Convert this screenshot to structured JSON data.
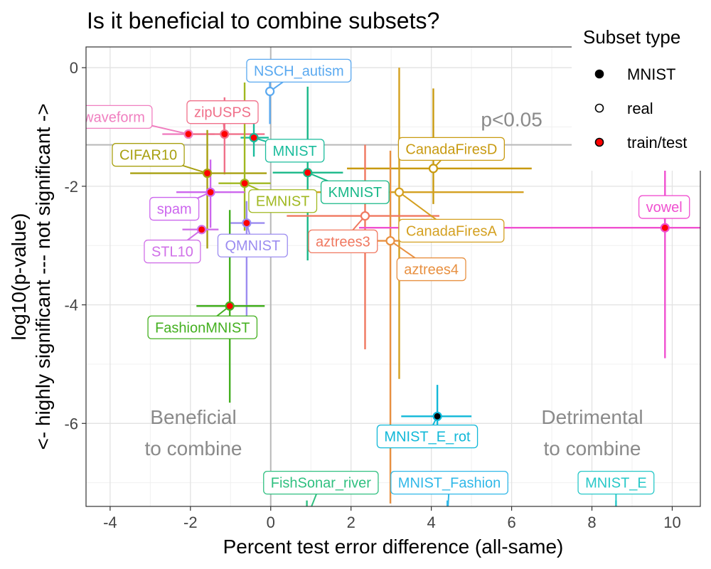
{
  "chart_data": {
    "type": "scatter",
    "title": "Is it beneficial to combine subsets?",
    "xlabel": "Percent test error difference (all-same)",
    "ylabel_line1": "log10(p-value)",
    "ylabel_line2": "<- highly significant --- not significant ->",
    "xlim": [
      -4.6,
      10.7
    ],
    "ylim": [
      -7.4,
      0.35
    ],
    "x_ticks": [
      -4,
      -2,
      0,
      2,
      4,
      6,
      8,
      10
    ],
    "y_ticks": [
      0,
      -2,
      -4,
      -6
    ],
    "x_tick_labels": [
      "-4",
      "-2",
      "0",
      "2",
      "4",
      "6",
      "8",
      "10"
    ],
    "y_tick_labels": [
      "0",
      "-2",
      "-4",
      "-6"
    ],
    "grid": true,
    "threshold": {
      "y": -1.30103,
      "label": "p<0.05"
    },
    "region_labels": {
      "left_line1": "Beneficial",
      "left_line2": "to combine",
      "right_line1": "Detrimental",
      "right_line2": "to combine"
    },
    "legend": {
      "title": "Subset type",
      "placement": "top-right",
      "entries": [
        {
          "label": "MNIST",
          "fill": "#000000"
        },
        {
          "label": "real",
          "fill": "#ffffff"
        },
        {
          "label": "train/test",
          "fill": "#ff0000"
        }
      ]
    },
    "points": [
      {
        "name": "NSCH_autism",
        "color": "#5aa9f0",
        "type": "real",
        "x": -0.02,
        "y": -0.4,
        "x_lo": -0.02,
        "x_hi": -0.02,
        "y_lo": -0.95,
        "y_hi": 0.0,
        "label_x": 0.7,
        "label_y": -0.05
      },
      {
        "name": "waveform",
        "color": "#f07fc0",
        "type": "train/test",
        "x": -2.05,
        "y": -1.12,
        "x_lo": -2.7,
        "x_hi": -1.4,
        "y_lo": -1.12,
        "y_hi": -1.12,
        "label_x": -3.9,
        "label_y": -0.83
      },
      {
        "name": "zipUSPS",
        "color": "#f0708a",
        "type": "train/test",
        "x": -1.15,
        "y": -1.12,
        "x_lo": -1.95,
        "x_hi": -0.15,
        "y_lo": -1.8,
        "y_hi": -0.5,
        "label_x": -1.2,
        "label_y": -0.75
      },
      {
        "name": "MNIST",
        "color": "#1abc9c",
        "type": "train/test",
        "x": -0.42,
        "y": -1.18,
        "x_lo": -0.75,
        "x_hi": -0.05,
        "y_lo": -1.5,
        "y_hi": -0.85,
        "label_x": 0.6,
        "label_y": -1.4
      },
      {
        "name": "CIFAR10",
        "color": "#a8a010",
        "type": "train/test",
        "x": -1.58,
        "y": -1.78,
        "x_lo": -3.5,
        "x_hi": -0.1,
        "y_lo": -3.05,
        "y_hi": -1.05,
        "label_x": -3.05,
        "label_y": -1.47
      },
      {
        "name": "EMNIST",
        "color": "#a0b820",
        "type": "train/test",
        "x": -0.65,
        "y": -1.95,
        "x_lo": -1.3,
        "x_hi": 0.0,
        "y_lo": -2.75,
        "y_hi": -0.25,
        "label_x": 0.3,
        "label_y": -2.25
      },
      {
        "name": "spam",
        "color": "#cc66ee",
        "type": "train/test",
        "x": -1.5,
        "y": -2.1,
        "x_lo": -2.35,
        "x_hi": -0.65,
        "y_lo": -2.7,
        "y_hi": -1.55,
        "label_x": -2.4,
        "label_y": -2.38
      },
      {
        "name": "STL10",
        "color": "#d070e8",
        "type": "train/test",
        "x": -1.72,
        "y": -2.73,
        "x_lo": -2.2,
        "x_hi": -1.3,
        "y_lo": -2.73,
        "y_hi": -2.73,
        "label_x": -2.45,
        "label_y": -3.1
      },
      {
        "name": "QMNIST",
        "color": "#9c8cf0",
        "type": "train/test",
        "x": -0.6,
        "y": -2.62,
        "x_lo": -1.0,
        "x_hi": -0.15,
        "y_lo": -4.2,
        "y_hi": -2.25,
        "label_x": -0.45,
        "label_y": -3.0
      },
      {
        "name": "FashionMNIST",
        "color": "#44b020",
        "type": "train/test",
        "x": -1.02,
        "y": -4.02,
        "x_lo": -1.85,
        "x_hi": -0.15,
        "y_lo": -5.65,
        "y_hi": -2.4,
        "label_x": -1.7,
        "label_y": -4.38
      },
      {
        "name": "KMNIST",
        "color": "#18b888",
        "type": "train/test",
        "x": 0.92,
        "y": -1.77,
        "x_lo": 0.05,
        "x_hi": 1.8,
        "y_lo": -3.25,
        "y_hi": -0.32,
        "label_x": 2.1,
        "label_y": -2.1
      },
      {
        "name": "CanadaFiresD",
        "color": "#c89a10",
        "type": "real",
        "x": 4.05,
        "y": -1.7,
        "x_lo": 1.9,
        "x_hi": 6.5,
        "y_lo": -2.3,
        "y_hi": -0.35,
        "label_x": 4.5,
        "label_y": -1.37
      },
      {
        "name": "CanadaFiresA",
        "color": "#d4a020",
        "type": "real",
        "x": 3.2,
        "y": -2.1,
        "x_lo": 0.5,
        "x_hi": 6.3,
        "y_lo": -5.25,
        "y_hi": 0.0,
        "label_x": 4.5,
        "label_y": -2.75
      },
      {
        "name": "aztrees3",
        "color": "#f07860",
        "type": "real",
        "x": 2.35,
        "y": -2.5,
        "x_lo": 0.4,
        "x_hi": 4.2,
        "y_lo": -4.75,
        "y_hi": -1.3,
        "label_x": 1.8,
        "label_y": -2.93
      },
      {
        "name": "aztrees4",
        "color": "#e89040",
        "type": "real",
        "x": 2.98,
        "y": -2.92,
        "x_lo": 1.5,
        "x_hi": 4.4,
        "y_lo": -7.35,
        "y_hi": -1.4,
        "label_x": 4.0,
        "label_y": -3.4
      },
      {
        "name": "vowel",
        "color": "#f050d0",
        "type": "train/test",
        "x": 9.82,
        "y": -2.7,
        "x_lo": 2.2,
        "x_hi": 10.7,
        "y_lo": -4.9,
        "y_hi": -1.7,
        "label_x": 9.8,
        "label_y": -2.35
      },
      {
        "name": "MNIST_E_rot",
        "color": "#10b8d8",
        "type": "MNIST",
        "x": 4.15,
        "y": -5.88,
        "x_lo": 3.25,
        "x_hi": 5.0,
        "y_lo": -6.3,
        "y_hi": -5.35,
        "label_x": 3.9,
        "label_y": -6.22
      },
      {
        "name": "FishSonar_river",
        "color": "#30c080",
        "type": "real",
        "x": 0.9,
        "y": -7.6,
        "x_lo": 0.9,
        "x_hi": 0.9,
        "y_lo": -7.6,
        "y_hi": -7.3,
        "label_x": 1.25,
        "label_y": -7.0
      },
      {
        "name": "MNIST_Fashion",
        "color": "#30b8e8",
        "type": "MNIST",
        "x": 4.4,
        "y": -7.6,
        "x_lo": 4.4,
        "x_hi": 4.4,
        "y_lo": -7.6,
        "y_hi": -7.3,
        "label_x": 4.45,
        "label_y": -7.0
      },
      {
        "name": "MNIST_E",
        "color": "#28c8c8",
        "type": "MNIST",
        "x": 8.6,
        "y": -7.6,
        "x_lo": 8.6,
        "x_hi": 8.6,
        "y_lo": -7.6,
        "y_hi": -7.3,
        "label_x": 8.6,
        "label_y": -7.0
      }
    ]
  }
}
